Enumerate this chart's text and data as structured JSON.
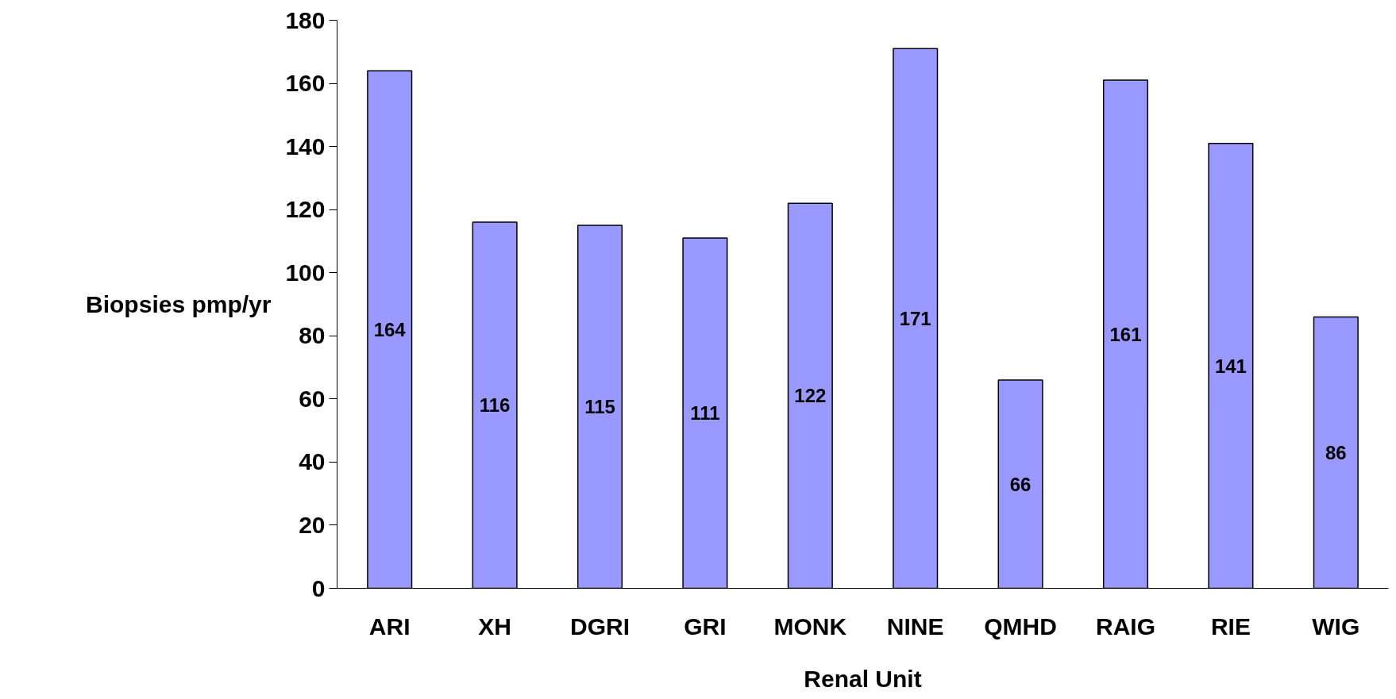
{
  "chart_data": {
    "type": "bar",
    "xlabel": "Renal Unit",
    "ylabel": "Biopsies pmp/yr",
    "categories": [
      "ARI",
      "XH",
      "DGRI",
      "GRI",
      "MONK",
      "NINE",
      "QMHD",
      "RAIG",
      "RIE",
      "WIG"
    ],
    "values": [
      164,
      116,
      115,
      111,
      122,
      171,
      66,
      161,
      141,
      86
    ],
    "color": "#9999ff",
    "ylim": [
      0,
      180
    ],
    "yticks": [
      0,
      20,
      40,
      60,
      80,
      100,
      120,
      140,
      160,
      180
    ],
    "data_labels": true
  }
}
